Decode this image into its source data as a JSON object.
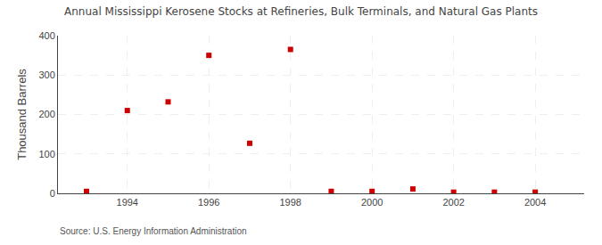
{
  "chart_data": {
    "type": "scatter",
    "title": "Annual Mississippi Kerosene Stocks at Refineries, Bulk Terminals, and Natural Gas Plants",
    "ylabel": "Thousand Barrels",
    "annotation": "Source: U.S. Energy Information Administration",
    "x": [
      1993,
      1994,
      1995,
      1996,
      1997,
      1998,
      1999,
      2000,
      2001,
      2002,
      2003,
      2004
    ],
    "values": [
      5,
      210,
      232,
      350,
      127,
      365,
      5,
      5,
      11,
      3,
      3,
      3
    ],
    "color": "#cc0000",
    "marker": "square",
    "xlim": [
      1992.3,
      2005.2
    ],
    "ylim": [
      0,
      400
    ],
    "xticks": [
      1994,
      1996,
      1998,
      2000,
      2002,
      2004
    ],
    "yticks": [
      0,
      100,
      200,
      300,
      400
    ],
    "grid": true
  }
}
